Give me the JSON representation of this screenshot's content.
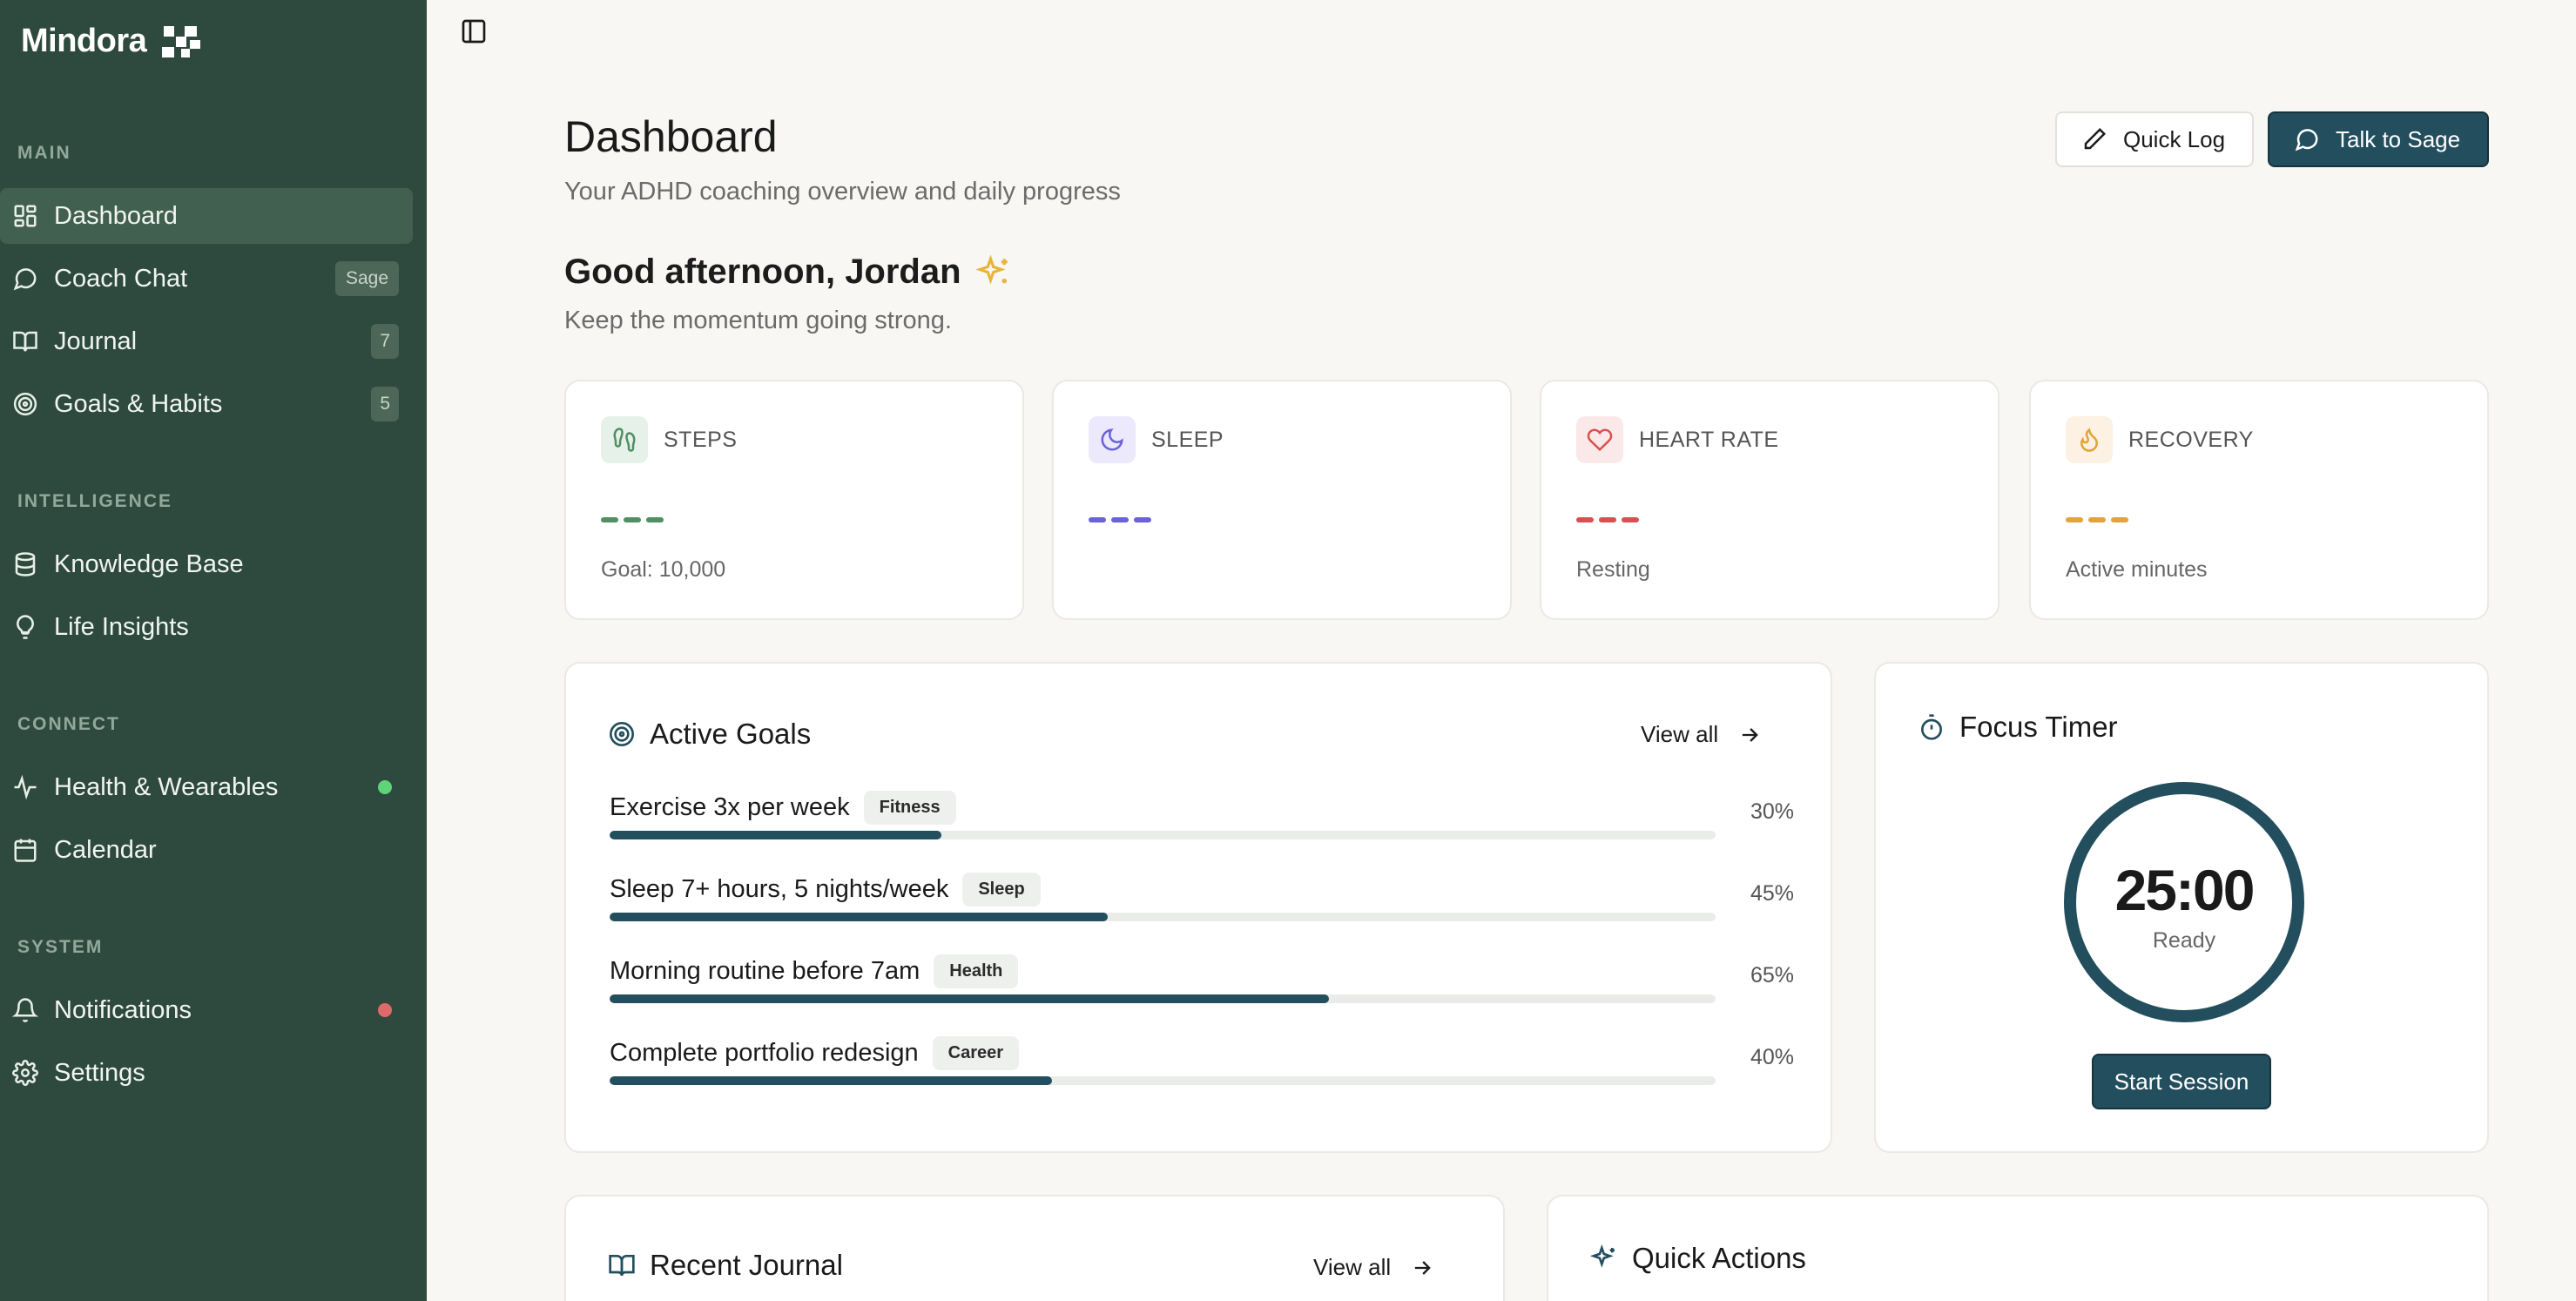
{
  "sidebar": {
    "brand": "Mindora",
    "sections": {
      "main": "MAIN",
      "intelligence": "INTELLIGENCE",
      "connect": "CONNECT",
      "system": "SYSTEM"
    },
    "items": {
      "dashboard": {
        "label": "Dashboard",
        "icon": "dashboard-icon",
        "active": true
      },
      "coach_chat": {
        "label": "Coach Chat",
        "icon": "chat-icon",
        "badge": "Sage"
      },
      "journal": {
        "label": "Journal",
        "icon": "book-icon",
        "badge": "7"
      },
      "goals": {
        "label": "Goals & Habits",
        "icon": "target-icon",
        "badge": "5"
      },
      "knowledge": {
        "label": "Knowledge Base",
        "icon": "database-icon"
      },
      "insights": {
        "label": "Life Insights",
        "icon": "lightbulb-icon"
      },
      "health": {
        "label": "Health & Wearables",
        "icon": "activity-icon",
        "status_color": "#5fd37a"
      },
      "calendar": {
        "label": "Calendar",
        "icon": "calendar-icon"
      },
      "notifications": {
        "label": "Notifications",
        "icon": "bell-icon",
        "status_color": "#e06a6a"
      },
      "settings": {
        "label": "Settings",
        "icon": "gear-icon"
      }
    }
  },
  "header": {
    "title": "Dashboard",
    "subtitle": "Your ADHD coaching overview and daily progress",
    "quick_log": "Quick Log",
    "talk_to_sage": "Talk to Sage"
  },
  "greeting": {
    "title": "Good afternoon, Jordan",
    "subtitle": "Keep the momentum going strong."
  },
  "stats": [
    {
      "label": "STEPS",
      "icon": "footprints-icon",
      "color": "#4f8f63",
      "icon_bg": "#e6f1ea",
      "footer": "Goal: 10,000"
    },
    {
      "label": "SLEEP",
      "icon": "moon-icon",
      "color": "#6b62d9",
      "icon_bg": "#ebe9fb",
      "footer": ""
    },
    {
      "label": "HEART RATE",
      "icon": "heart-icon",
      "color": "#d95050",
      "icon_bg": "#fbe9e9",
      "footer": "Resting"
    },
    {
      "label": "RECOVERY",
      "icon": "flame-icon",
      "color": "#e0a43a",
      "icon_bg": "#fcf1e2",
      "footer": "Active minutes"
    }
  ],
  "goals": {
    "title": "Active Goals",
    "view_all": "View all",
    "items": [
      {
        "title": "Exercise 3x per week",
        "tag": "Fitness",
        "progress": 30,
        "pct_label": "30%"
      },
      {
        "title": "Sleep 7+ hours, 5 nights/week",
        "tag": "Sleep",
        "progress": 45,
        "pct_label": "45%"
      },
      {
        "title": "Morning routine before 7am",
        "tag": "Health",
        "progress": 65,
        "pct_label": "65%"
      },
      {
        "title": "Complete portfolio redesign",
        "tag": "Career",
        "progress": 40,
        "pct_label": "40%"
      }
    ]
  },
  "timer": {
    "title": "Focus Timer",
    "time": "25:00",
    "status": "Ready",
    "start": "Start Session"
  },
  "journal": {
    "title": "Recent Journal",
    "view_all": "View all"
  },
  "quick_actions": {
    "title": "Quick Actions"
  }
}
